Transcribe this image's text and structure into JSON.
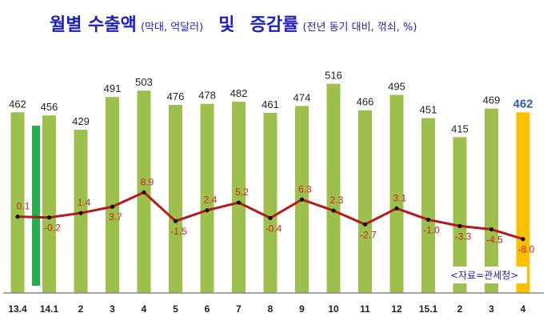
{
  "header": {
    "title": "월별 수출액",
    "title_unit": "(막대, 억달러)",
    "title_and": "및",
    "title_rate": "증감률",
    "title_rate_unit": "(전년 동기 대비, 꺾쇠, %)"
  },
  "source": "<자료=관세청>",
  "colors": {
    "bar": "#9dbf4c",
    "bar_highlight": "#ffc000",
    "line": "#b51a1a",
    "marker": "#111111",
    "accent_bar": "#22b14c",
    "title": "#1f1fbf",
    "pct_label": "#d42020"
  },
  "chart_data": {
    "type": "bar",
    "categories": [
      "13.4",
      "14.1",
      "2",
      "3",
      "4",
      "5",
      "6",
      "7",
      "8",
      "9",
      "10",
      "11",
      "12",
      "15.1",
      "2",
      "3",
      "4"
    ],
    "series": [
      {
        "type": "bar",
        "values": [
          462,
          456,
          429,
          491,
          503,
          476,
          478,
          482,
          461,
          474,
          516,
          466,
          495,
          451,
          415,
          469,
          462
        ]
      },
      {
        "type": "line",
        "values": [
          0.1,
          -0.2,
          1.4,
          3.7,
          8.9,
          -1.5,
          2.4,
          5.2,
          -0.4,
          6.3,
          2.3,
          -2.7,
          3.1,
          -1.0,
          -3.3,
          -4.5,
          -8.0
        ]
      }
    ],
    "highlight_index": 16,
    "grid": false,
    "legend": "none"
  }
}
